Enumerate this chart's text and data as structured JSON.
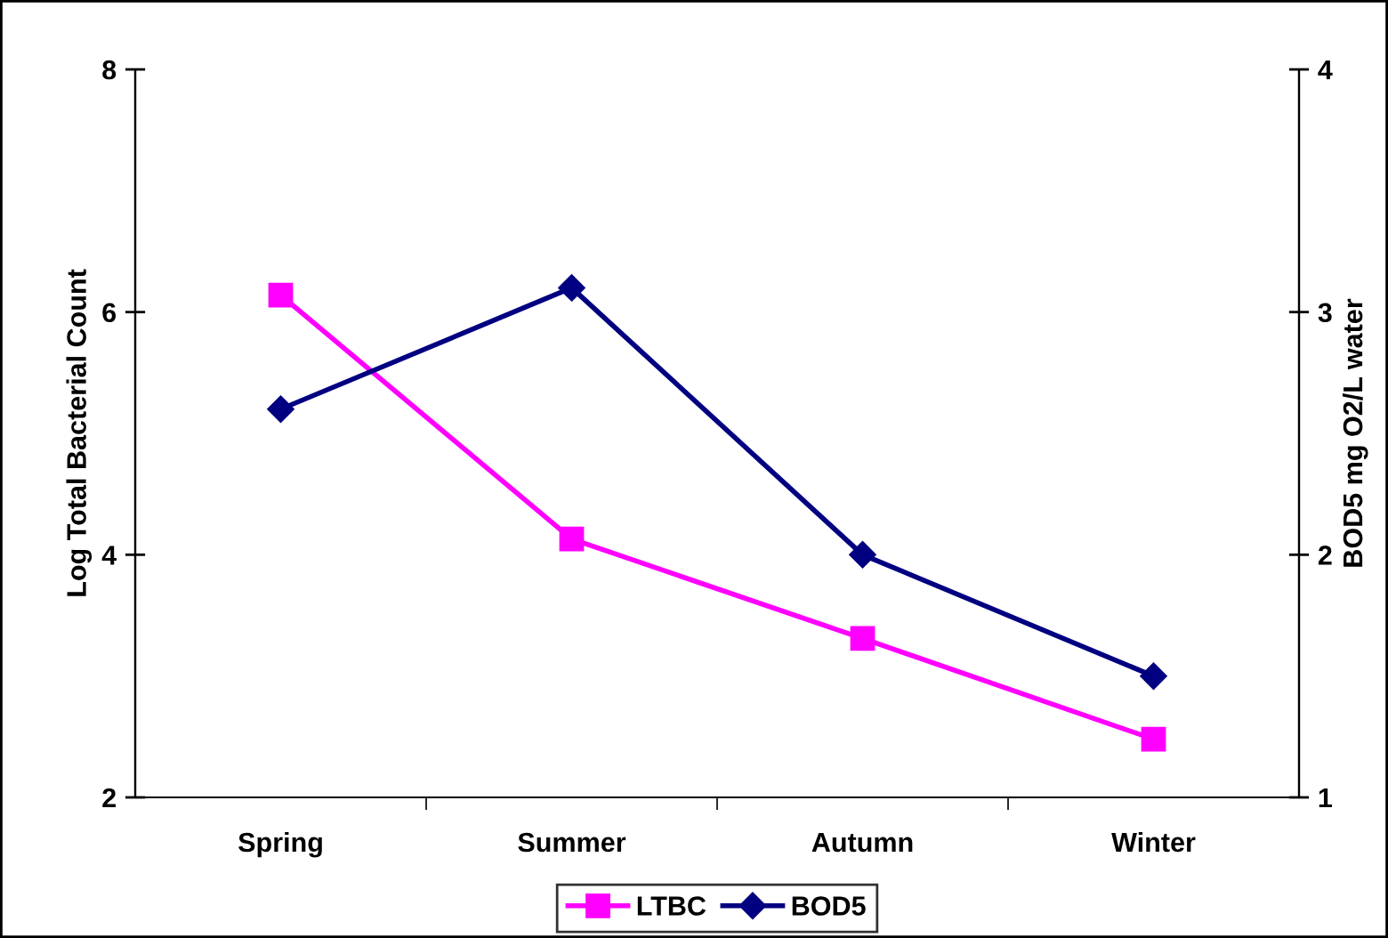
{
  "chart_data": {
    "type": "line",
    "categories": [
      "Spring",
      "Summer",
      "Autumn",
      "Winter"
    ],
    "ylabel": "Log Total Bacterial Count",
    "y2label": "BOD5 mg O2/L water",
    "ylim": [
      2,
      8
    ],
    "yticks": [
      2,
      4,
      6,
      8
    ],
    "y2lim": [
      1,
      4
    ],
    "y2ticks": [
      1,
      2,
      3,
      4
    ],
    "series": [
      {
        "name": "LTBC",
        "color": "#ff00ff",
        "marker": "square",
        "values": [
          6.14,
          4.13,
          3.31,
          2.48
        ]
      },
      {
        "name": "BOD5",
        "color": "#000080",
        "marker": "diamond",
        "axis": "y2",
        "values": [
          2.6,
          3.1,
          2.0,
          1.5
        ]
      }
    ],
    "grid": false,
    "legend": "bottom"
  }
}
